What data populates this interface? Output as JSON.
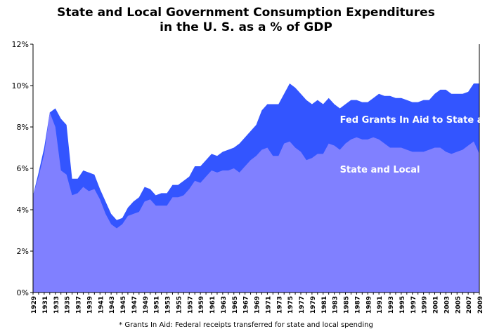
{
  "chart_data": {
    "type": "area",
    "title_line1": "State and Local Government Consumption Expenditures",
    "title_line2": "in the U. S. as a % of GDP",
    "footnote": "* Grants In Aid: Federal receipts transferred for state and local spending",
    "ylim": [
      0,
      12
    ],
    "yticks": [
      "0%",
      "2%",
      "4%",
      "6%",
      "8%",
      "10%",
      "12%"
    ],
    "grid": false,
    "x": [
      1929,
      1930,
      1931,
      1932,
      1933,
      1934,
      1935,
      1936,
      1937,
      1938,
      1939,
      1940,
      1941,
      1942,
      1943,
      1944,
      1945,
      1946,
      1947,
      1948,
      1949,
      1950,
      1951,
      1952,
      1953,
      1954,
      1955,
      1956,
      1957,
      1958,
      1959,
      1960,
      1961,
      1962,
      1963,
      1964,
      1965,
      1966,
      1967,
      1968,
      1969,
      1970,
      1971,
      1972,
      1973,
      1974,
      1975,
      1976,
      1977,
      1978,
      1979,
      1980,
      1981,
      1982,
      1983,
      1984,
      1985,
      1986,
      1987,
      1988,
      1989,
      1990,
      1991,
      1992,
      1993,
      1994,
      1995,
      1996,
      1997,
      1998,
      1999,
      2000,
      2001,
      2002,
      2003,
      2004,
      2005,
      2006,
      2007,
      2008,
      2009
    ],
    "xtick_labels": [
      "1929",
      "1931",
      "1933",
      "1935",
      "1937",
      "1939",
      "1941",
      "1943",
      "1945",
      "1947",
      "1949",
      "1951",
      "1953",
      "1955",
      "1957",
      "1959",
      "1961",
      "1963",
      "1965",
      "1967",
      "1969",
      "1971",
      "1973",
      "1975",
      "1977",
      "1979",
      "1981",
      "1983",
      "1985",
      "1987",
      "1989",
      "1991",
      "1993",
      "1995",
      "1997",
      "1999",
      "2001",
      "2003",
      "2005",
      "2007",
      "2009"
    ],
    "series": [
      {
        "name": "State and Local",
        "color": "#8080ff",
        "values": [
          4.7,
          5.6,
          6.7,
          8.7,
          8.0,
          5.9,
          5.7,
          4.7,
          4.8,
          5.1,
          4.9,
          5.0,
          4.5,
          3.8,
          3.3,
          3.1,
          3.3,
          3.7,
          3.8,
          3.9,
          4.4,
          4.5,
          4.2,
          4.2,
          4.2,
          4.6,
          4.6,
          4.7,
          5.0,
          5.4,
          5.3,
          5.6,
          5.9,
          5.8,
          5.9,
          5.9,
          6.0,
          5.8,
          6.1,
          6.4,
          6.6,
          6.9,
          7.0,
          6.6,
          6.6,
          7.2,
          7.3,
          7.0,
          6.8,
          6.4,
          6.5,
          6.7,
          6.7,
          7.2,
          7.1,
          6.9,
          7.2,
          7.4,
          7.5,
          7.4,
          7.4,
          7.5,
          7.4,
          7.2,
          7.0,
          7.0,
          7.0,
          6.9,
          6.8,
          6.8,
          6.8,
          6.9,
          7.0,
          7.0,
          6.8,
          6.7,
          6.8,
          6.9,
          7.1,
          7.3,
          6.7
        ]
      },
      {
        "name": "Fed Grants In Aid to State and Local*",
        "color": "#3355ff",
        "values": [
          4.7,
          5.8,
          7.0,
          8.7,
          8.9,
          8.4,
          8.1,
          5.5,
          5.5,
          5.9,
          5.8,
          5.7,
          5.0,
          4.4,
          3.8,
          3.5,
          3.6,
          4.1,
          4.4,
          4.6,
          5.1,
          5.0,
          4.7,
          4.8,
          4.8,
          5.2,
          5.2,
          5.4,
          5.6,
          6.1,
          6.1,
          6.4,
          6.7,
          6.6,
          6.8,
          6.9,
          7.0,
          7.2,
          7.5,
          7.8,
          8.1,
          8.8,
          9.1,
          9.1,
          9.1,
          9.6,
          10.1,
          9.9,
          9.6,
          9.3,
          9.1,
          9.3,
          9.1,
          9.4,
          9.1,
          8.9,
          9.1,
          9.3,
          9.3,
          9.2,
          9.2,
          9.4,
          9.6,
          9.5,
          9.5,
          9.4,
          9.4,
          9.3,
          9.2,
          9.2,
          9.3,
          9.3,
          9.6,
          9.8,
          9.8,
          9.6,
          9.6,
          9.6,
          9.7,
          10.1,
          10.1
        ]
      }
    ],
    "annotations": [
      {
        "text": "Fed Grants In Aid to State and Local*",
        "x": 1984,
        "y": 8.2
      },
      {
        "text": "State and Local",
        "x": 1984,
        "y": 5.8
      }
    ]
  }
}
